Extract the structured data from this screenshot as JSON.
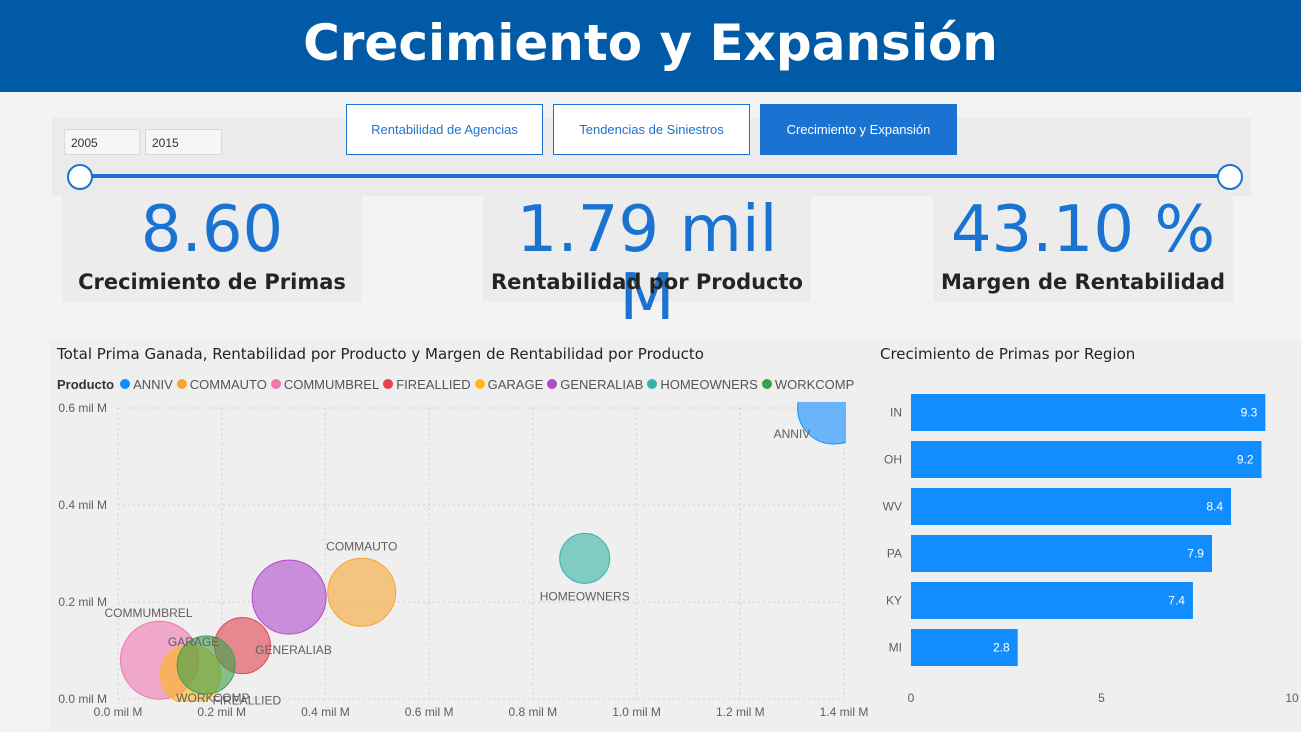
{
  "header": {
    "title": "Crecimiento y Expansión"
  },
  "slicer": {
    "start": "2005",
    "end": "2015"
  },
  "nav": [
    {
      "label": "Rentabilidad de Agencias",
      "active": false
    },
    {
      "label": "Tendencias de Siniestros",
      "active": false
    },
    {
      "label": "Crecimiento y Expansión",
      "active": true
    }
  ],
  "kpis": [
    {
      "value": "8.60",
      "label": "Crecimiento de Primas"
    },
    {
      "value": "1.79 mil M",
      "label": "Rentabilidad por Producto"
    },
    {
      "value": "43.10 %",
      "label": "Margen de Rentabilidad"
    }
  ],
  "colors": {
    "accent": "#1a73d1",
    "header": "#015aa5",
    "bar": "#118dff"
  },
  "chart_data": [
    {
      "type": "scatter",
      "title": "Total Prima Ganada, Rentabilidad por Producto y Margen de Rentabilidad por Producto",
      "legend_title": "Producto",
      "legend_placement": "top-left",
      "grid": true,
      "xlim": [
        0,
        1.4
      ],
      "ylim": [
        0,
        0.6
      ],
      "x_ticks": [
        "0.0 mil M",
        "0.2 mil M",
        "0.4 mil M",
        "0.6 mil M",
        "0.8 mil M",
        "1.0 mil M",
        "1.2 mil M",
        "1.4 mil M"
      ],
      "y_ticks": [
        "0.0 mil M",
        "0.2 mil M",
        "0.4 mil M",
        "0.6 mil M"
      ],
      "series": [
        {
          "name": "ANNIV",
          "color": "#118dff",
          "x": 1.38,
          "y": 0.6,
          "size": 0.36,
          "label": "ANNIV"
        },
        {
          "name": "COMMAUTO",
          "color": "#f7a531",
          "x": 0.47,
          "y": 0.22,
          "size": 0.34,
          "label": "COMMAUTO"
        },
        {
          "name": "COMMUMBREL",
          "color": "#ef77b0",
          "x": 0.08,
          "y": 0.08,
          "size": 0.39,
          "label": "COMMUMBREL"
        },
        {
          "name": "FIREALLIED",
          "color": "#e0454f",
          "x": 0.24,
          "y": 0.11,
          "size": 0.28,
          "label": "FIREALLIED"
        },
        {
          "name": "GARAGE",
          "color": "#ffb71b",
          "x": 0.14,
          "y": 0.05,
          "size": 0.3,
          "label": "GARAGE"
        },
        {
          "name": "GENERALIAB",
          "color": "#b14bc9",
          "x": 0.33,
          "y": 0.21,
          "size": 0.37,
          "label": "GENERALIAB"
        },
        {
          "name": "HOMEOWNERS",
          "color": "#36b4a6",
          "x": 0.9,
          "y": 0.29,
          "size": 0.25,
          "label": "HOMEOWNERS"
        },
        {
          "name": "WORKCOMP",
          "color": "#3aa04a",
          "x": 0.17,
          "y": 0.07,
          "size": 0.29,
          "label": "WORKCOMP"
        }
      ]
    },
    {
      "type": "bar",
      "orientation": "horizontal",
      "title": "Crecimiento de Primas por Region",
      "categories": [
        "IN",
        "OH",
        "WV",
        "PA",
        "KY",
        "MI"
      ],
      "values": [
        9.3,
        9.2,
        8.4,
        7.9,
        7.4,
        2.8
      ],
      "value_labels": [
        "9.3",
        "9.2",
        "8.4",
        "7.9",
        "7.4",
        "2.8"
      ],
      "xlim": [
        0,
        10
      ],
      "x_ticks": [
        "0",
        "5",
        "10"
      ]
    }
  ]
}
